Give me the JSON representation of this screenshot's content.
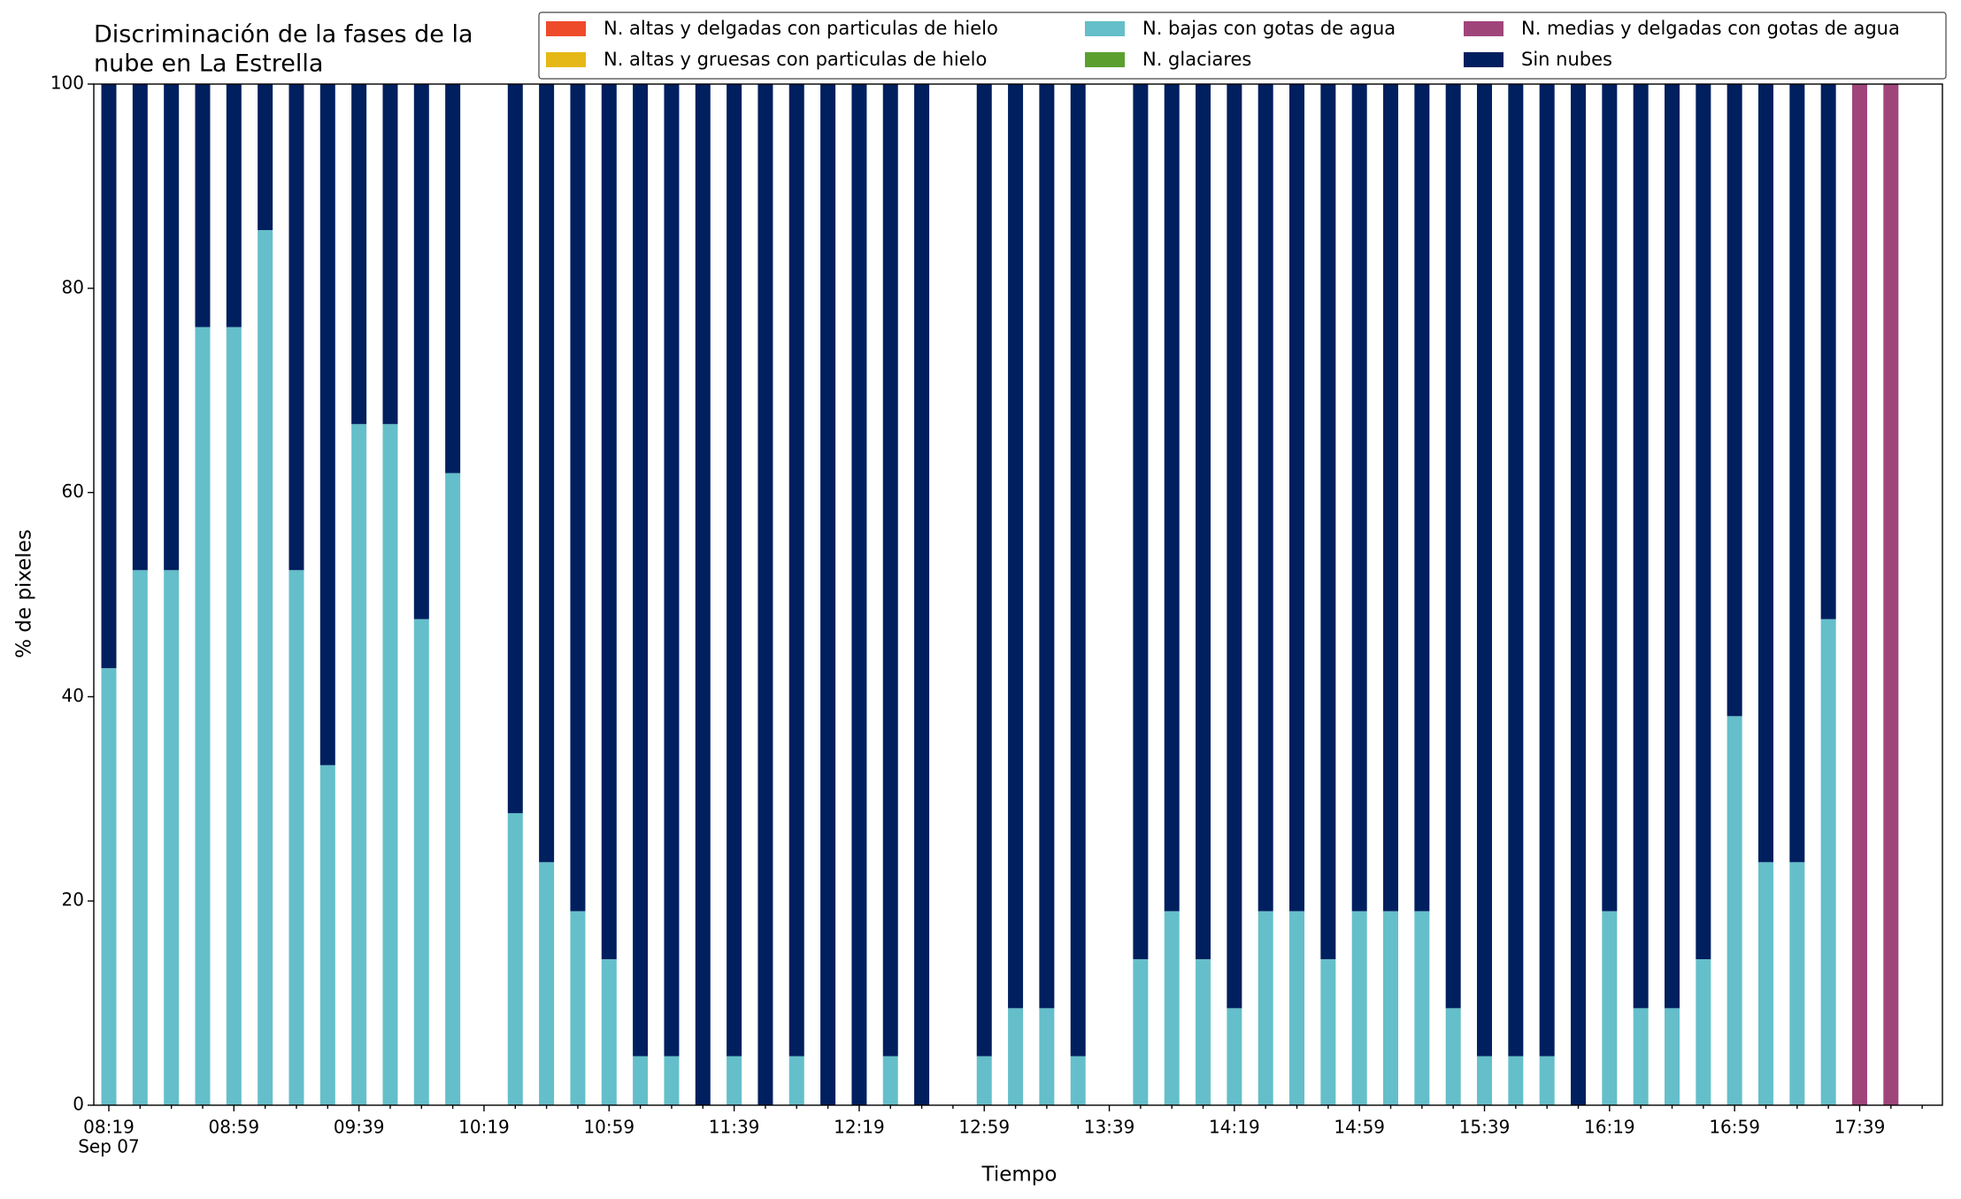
{
  "chart_data": {
    "type": "bar",
    "stacked": true,
    "title": [
      "Discriminación de la fases de la",
      "nube en La Estrella"
    ],
    "x_label": "Tiempo",
    "y_label": "% de pixeles",
    "date_label": "Sep 07",
    "categories": [
      "08:19",
      null,
      null,
      null,
      "08:59",
      null,
      null,
      null,
      "09:39",
      null,
      null,
      null,
      "10:19",
      null,
      null,
      null,
      "10:59",
      null,
      null,
      null,
      "11:39",
      null,
      null,
      null,
      "12:19",
      null,
      null,
      null,
      "12:59",
      null,
      null,
      null,
      "13:39",
      null,
      null,
      null,
      "14:19",
      null,
      null,
      null,
      "14:59",
      null,
      null,
      null,
      "15:39",
      null,
      null,
      null,
      "16:19",
      null,
      null,
      null,
      "16:59",
      null,
      null,
      null,
      "17:39",
      null,
      null
    ],
    "ylim": [
      0,
      100
    ],
    "yticks": [
      0,
      20,
      40,
      60,
      80,
      100
    ],
    "grid": false,
    "legend": "top-right",
    "series": [
      {
        "name": "N. altas y delgadas con particulas de hielo",
        "color": "#ee4b2b",
        "values": [
          0,
          0,
          0,
          0,
          0,
          0,
          0,
          0,
          0,
          0,
          0,
          0,
          null,
          0,
          0,
          0,
          0,
          0,
          0,
          0,
          0,
          0,
          0,
          0,
          0,
          0,
          0,
          null,
          0,
          0,
          0,
          0,
          null,
          0,
          0,
          0,
          0,
          0,
          0,
          0,
          0,
          0,
          0,
          0,
          0,
          0,
          0,
          0,
          0,
          0,
          0,
          0,
          0,
          0,
          0,
          0,
          0,
          0,
          null
        ]
      },
      {
        "name": "N. altas y gruesas con particulas de hielo",
        "color": "#e6b817",
        "values": [
          0,
          0,
          0,
          0,
          0,
          0,
          0,
          0,
          0,
          0,
          0,
          0,
          null,
          0,
          0,
          0,
          0,
          0,
          0,
          0,
          0,
          0,
          0,
          0,
          0,
          0,
          0,
          null,
          0,
          0,
          0,
          0,
          null,
          0,
          0,
          0,
          0,
          0,
          0,
          0,
          0,
          0,
          0,
          0,
          0,
          0,
          0,
          0,
          0,
          0,
          0,
          0,
          0,
          0,
          0,
          0,
          0,
          0,
          null
        ]
      },
      {
        "name": "N. bajas con gotas de agua",
        "color": "#64bfca",
        "values": [
          42.8,
          52.4,
          52.4,
          76.2,
          76.2,
          85.7,
          52.4,
          33.3,
          66.7,
          66.7,
          47.6,
          61.9,
          null,
          28.6,
          23.8,
          19.0,
          14.3,
          4.8,
          4.8,
          0,
          4.8,
          0,
          4.8,
          0,
          0,
          4.8,
          0,
          null,
          4.8,
          9.5,
          9.5,
          4.8,
          null,
          14.3,
          19.0,
          14.3,
          9.5,
          19.0,
          19.0,
          14.3,
          19.0,
          19.0,
          19.0,
          9.5,
          4.8,
          4.8,
          4.8,
          0,
          19.0,
          9.5,
          9.5,
          14.3,
          38.1,
          23.8,
          23.8,
          47.6,
          0,
          0,
          null
        ]
      },
      {
        "name": "N. glaciares",
        "color": "#5ba02f",
        "values": [
          0,
          0,
          0,
          0,
          0,
          0,
          0,
          0,
          0,
          0,
          0,
          0,
          null,
          0,
          0,
          0,
          0,
          0,
          0,
          0,
          0,
          0,
          0,
          0,
          0,
          0,
          0,
          null,
          0,
          0,
          0,
          0,
          null,
          0,
          0,
          0,
          0,
          0,
          0,
          0,
          0,
          0,
          0,
          0,
          0,
          0,
          0,
          0,
          0,
          0,
          0,
          0,
          0,
          0,
          0,
          0,
          0,
          0,
          null
        ]
      },
      {
        "name": "N. medias y delgadas con gotas de agua",
        "color": "#a0457a",
        "values": [
          0,
          0,
          0,
          0,
          0,
          0,
          0,
          0,
          0,
          0,
          0,
          0,
          null,
          0,
          0,
          0,
          0,
          0,
          0,
          0,
          0,
          0,
          0,
          0,
          0,
          0,
          0,
          null,
          0,
          0,
          0,
          0,
          null,
          0,
          0,
          0,
          0,
          0,
          0,
          0,
          0,
          0,
          0,
          0,
          0,
          0,
          0,
          0,
          0,
          0,
          0,
          0,
          0,
          0,
          0,
          0,
          100,
          100,
          null
        ]
      },
      {
        "name": "Sin nubes",
        "color": "#001f5f",
        "values": [
          57.2,
          47.6,
          47.6,
          23.8,
          23.8,
          14.3,
          47.6,
          66.7,
          33.3,
          33.3,
          52.4,
          38.1,
          null,
          71.4,
          76.2,
          81.0,
          85.7,
          95.2,
          95.2,
          100,
          95.2,
          100,
          95.2,
          100,
          100,
          95.2,
          100,
          null,
          95.2,
          90.5,
          90.5,
          95.2,
          null,
          85.7,
          81.0,
          85.7,
          90.5,
          81.0,
          81.0,
          85.7,
          81.0,
          81.0,
          81.0,
          90.5,
          95.2,
          95.2,
          95.2,
          100,
          81.0,
          90.5,
          90.5,
          85.7,
          61.9,
          76.2,
          76.2,
          52.4,
          0,
          0,
          null
        ]
      }
    ]
  }
}
